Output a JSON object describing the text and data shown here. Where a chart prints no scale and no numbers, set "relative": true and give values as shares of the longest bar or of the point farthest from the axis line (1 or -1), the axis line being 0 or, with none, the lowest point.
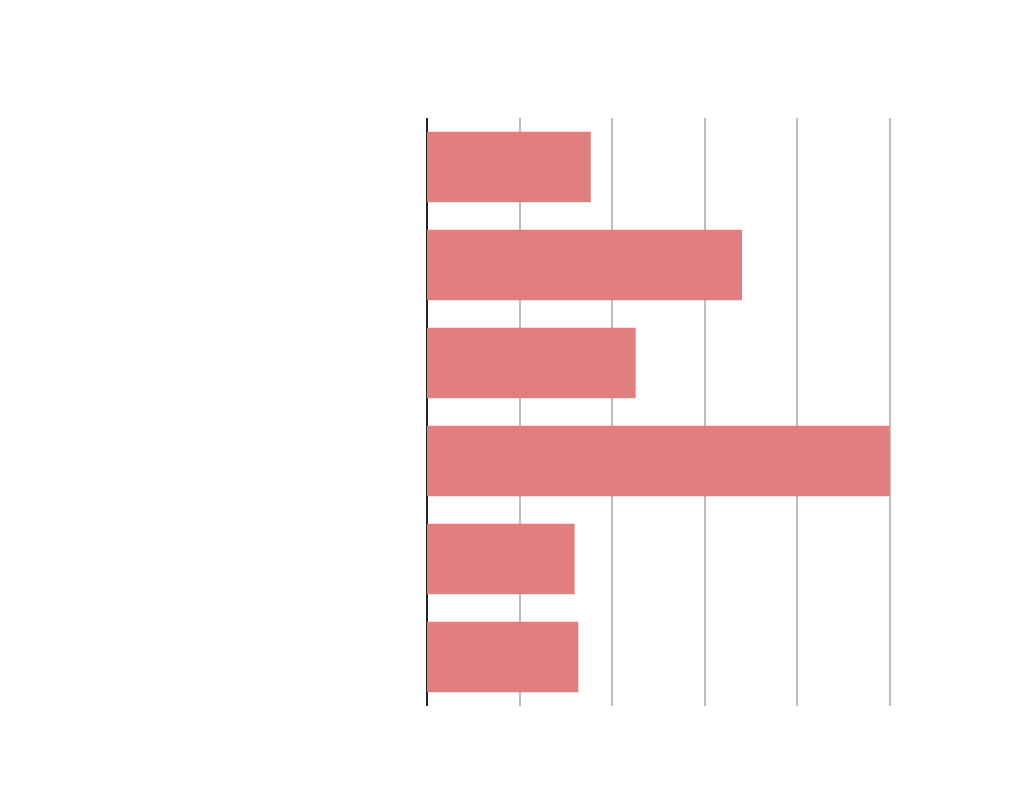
{
  "chart_data": {
    "type": "bar",
    "orientation": "horizontal",
    "relative": true,
    "grid": "x",
    "categories": [
      null,
      null,
      null,
      null,
      null,
      null
    ],
    "values": [
      0.354,
      0.681,
      0.451,
      1,
      0.319,
      0.327
    ],
    "color": "#e07f7e"
  }
}
